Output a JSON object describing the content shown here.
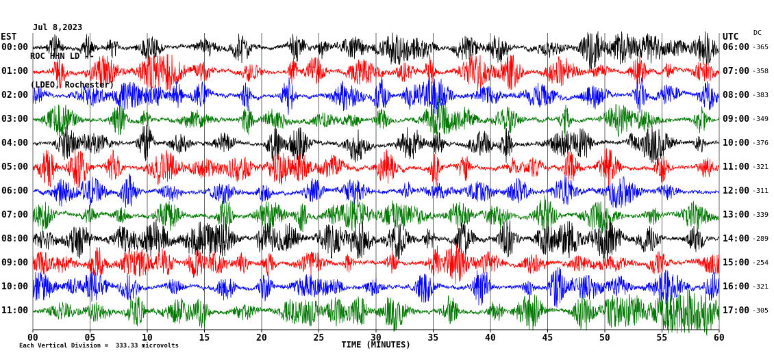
{
  "header": {
    "date": "Jul 8,2023",
    "station": "ROC HHN LD --",
    "location": "(LDEO, Rochester)"
  },
  "axes": {
    "left_timezone_label": "EST",
    "right_timezone_label": "UTC",
    "dc_column_label": "DC",
    "x_axis_label": "TIME (MINUTES)",
    "x_tick_labels": [
      "00",
      "05",
      "10",
      "15",
      "20",
      "25",
      "30",
      "35",
      "40",
      "45",
      "50",
      "55",
      "60"
    ]
  },
  "footer": {
    "scale_note": "Each Vertical Division =  333.33 microvolts"
  },
  "chart_data": {
    "type": "line",
    "description": "12-hour helicorder (webicorder) seismogram for station ROC HHN LD (LDEO, Rochester). One horizontal trace per hour, continuous noisy seismic signal with quasi-periodic high-amplitude bursts. Trace colors cycle black, red, blue, green.",
    "title": "ROC HHN LD -- (LDEO, Rochester) Jul 8,2023",
    "xlabel": "TIME (MINUTES)",
    "x_range": [
      0,
      60
    ],
    "x_tick_interval_minutes": 5,
    "grid": {
      "vertical_gridlines_every_minutes": 5
    },
    "vertical_division_scale": "Each Vertical Division = 333.33 microvolts",
    "trace_colors_cycle": [
      "#000000",
      "#ff0000",
      "#0000ff",
      "#007700"
    ],
    "rows": [
      {
        "est": "00:00",
        "utc": "06:00",
        "dc": "-365",
        "color": "#000000"
      },
      {
        "est": "01:00",
        "utc": "07:00",
        "dc": "-358",
        "color": "#ff0000"
      },
      {
        "est": "02:00",
        "utc": "08:00",
        "dc": "-383",
        "color": "#0000ff"
      },
      {
        "est": "03:00",
        "utc": "09:00",
        "dc": "-349",
        "color": "#007700"
      },
      {
        "est": "04:00",
        "utc": "10:00",
        "dc": "-376",
        "color": "#000000"
      },
      {
        "est": "05:00",
        "utc": "11:00",
        "dc": "-321",
        "color": "#ff0000"
      },
      {
        "est": "06:00",
        "utc": "12:00",
        "dc": "-311",
        "color": "#0000ff"
      },
      {
        "est": "07:00",
        "utc": "13:00",
        "dc": "-339",
        "color": "#007700"
      },
      {
        "est": "08:00",
        "utc": "14:00",
        "dc": "-289",
        "color": "#000000"
      },
      {
        "est": "09:00",
        "utc": "15:00",
        "dc": "-254",
        "color": "#ff0000"
      },
      {
        "est": "10:00",
        "utc": "16:00",
        "dc": "-321",
        "color": "#0000ff"
      },
      {
        "est": "11:00",
        "utc": "17:00",
        "dc": "-305",
        "color": "#007700"
      }
    ]
  }
}
